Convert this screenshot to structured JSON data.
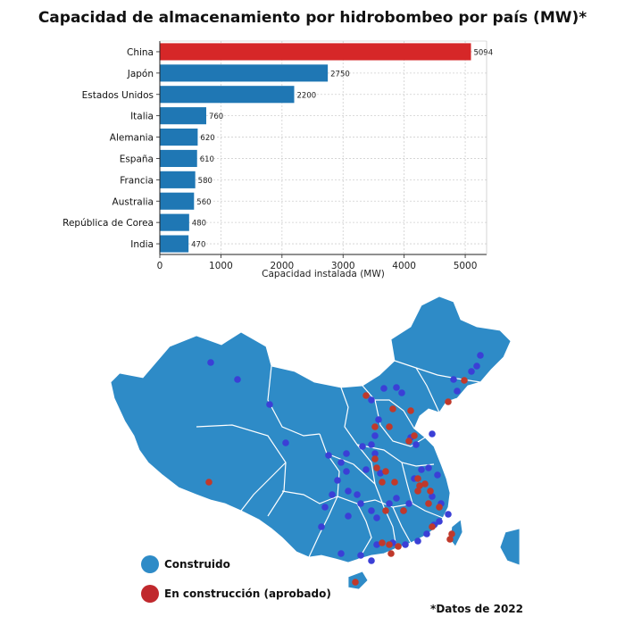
{
  "chart_data": {
    "type": "bar",
    "orientation": "horizontal",
    "title": "Capacidad de almacenamiento por hidrobombeo por país (MW)*",
    "xlabel": "Capacidad instalada (MW)",
    "ylabel": "",
    "xlim": [
      0,
      5350
    ],
    "xticks": [
      0,
      1000,
      2000,
      3000,
      4000,
      5000
    ],
    "grid": true,
    "categories": [
      "China",
      "Japón",
      "Estados Unidos",
      "Italia",
      "Alemania",
      "España",
      "Francia",
      "Australia",
      "República de Corea",
      "India"
    ],
    "values": [
      5094,
      2750,
      2200,
      760,
      620,
      610,
      580,
      560,
      480,
      470
    ],
    "colors": {
      "highlight": "#d62728",
      "default": "#1f77b4"
    }
  },
  "map": {
    "fill": "#2e8bc7",
    "border": "#ffffff",
    "built_color": "#3b3fd6",
    "construction_color": "#c0392b"
  },
  "legend": [
    {
      "label": "Construido",
      "color": "#2e8bc7"
    },
    {
      "label": "En construcción (aprobado)",
      "color": "#c0282d"
    }
  ],
  "footnote": "*Datos de 2022"
}
